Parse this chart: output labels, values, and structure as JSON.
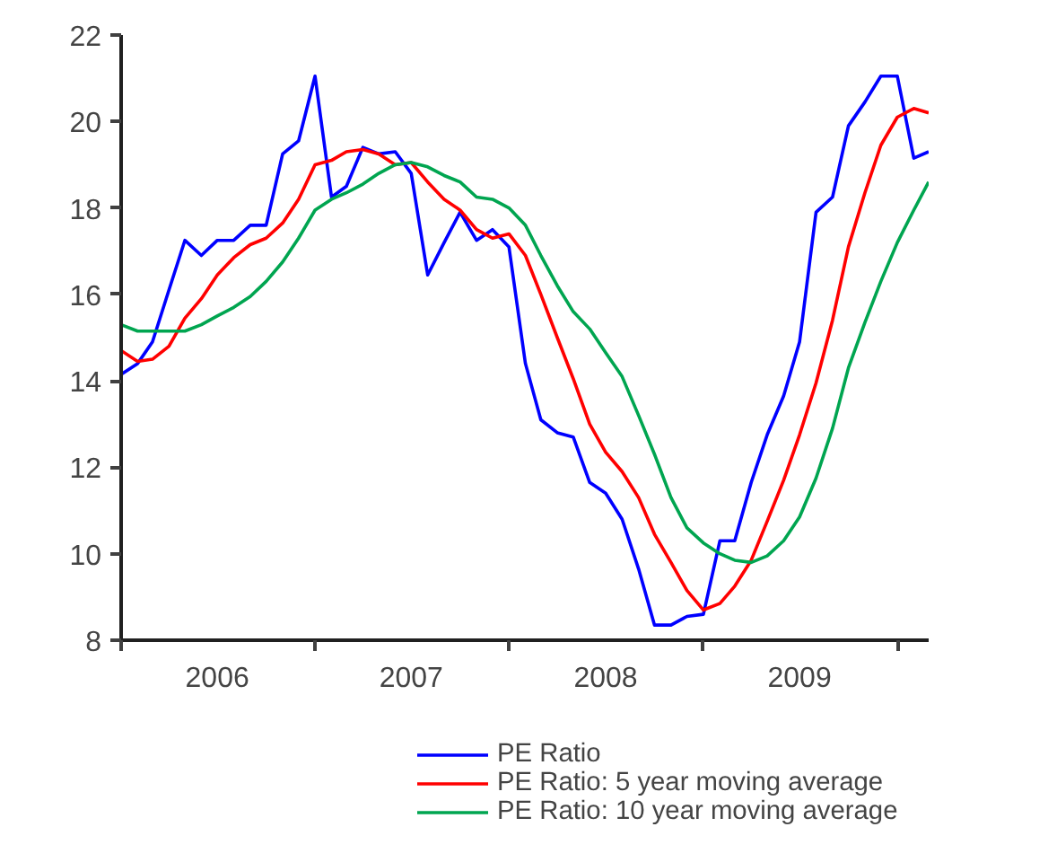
{
  "chart_data": {
    "type": "line",
    "x": [
      "2006-01",
      "2006-02",
      "2006-03",
      "2006-04",
      "2006-05",
      "2006-06",
      "2006-07",
      "2006-08",
      "2006-09",
      "2006-10",
      "2006-11",
      "2006-12",
      "2007-01",
      "2007-02",
      "2007-03",
      "2007-04",
      "2007-05",
      "2007-06",
      "2007-07",
      "2007-08",
      "2007-09",
      "2007-10",
      "2007-11",
      "2007-12",
      "2008-01",
      "2008-02",
      "2008-03",
      "2008-04",
      "2008-05",
      "2008-06",
      "2008-07",
      "2008-08",
      "2008-09",
      "2008-10",
      "2008-11",
      "2008-12",
      "2009-01",
      "2009-02",
      "2009-03",
      "2009-04",
      "2009-05",
      "2009-06",
      "2009-07",
      "2009-08",
      "2009-09",
      "2009-10",
      "2009-11",
      "2009-12",
      "2010-01",
      "2010-02",
      "2010-03"
    ],
    "series": [
      {
        "name": "PE Ratio",
        "color": "#0000ff",
        "values": [
          14.15,
          14.4,
          14.9,
          16.1,
          17.25,
          16.9,
          17.25,
          17.25,
          17.6,
          17.6,
          19.25,
          19.55,
          21.05,
          18.25,
          18.5,
          19.4,
          19.25,
          19.3,
          18.8,
          16.45,
          17.2,
          17.9,
          17.25,
          17.5,
          17.1,
          14.4,
          13.1,
          12.8,
          12.7,
          11.65,
          11.4,
          10.8,
          9.65,
          8.35,
          8.35,
          8.55,
          8.6,
          10.3,
          10.3,
          11.65,
          12.75,
          13.65,
          14.9,
          17.9,
          18.25,
          19.9,
          20.45,
          21.05,
          21.05,
          19.15,
          19.3
        ]
      },
      {
        "name": "PE Ratio: 5 year moving average",
        "color": "#ff0000",
        "values": [
          14.7,
          14.45,
          14.5,
          14.8,
          15.45,
          15.9,
          16.45,
          16.85,
          17.15,
          17.3,
          17.65,
          18.2,
          19.0,
          19.1,
          19.3,
          19.35,
          19.25,
          19.0,
          19.05,
          18.6,
          18.2,
          17.95,
          17.5,
          17.3,
          17.4,
          16.9,
          16.0,
          15.0,
          14.05,
          13.0,
          12.35,
          11.9,
          11.3,
          10.45,
          9.8,
          9.15,
          8.7,
          8.85,
          9.25,
          9.85,
          10.75,
          11.7,
          12.75,
          13.95,
          15.4,
          17.1,
          18.35,
          19.45,
          20.1,
          20.3,
          20.2
        ]
      },
      {
        "name": "PE Ratio: 10 year moving average",
        "color": "#00a550",
        "values": [
          15.3,
          15.15,
          15.15,
          15.15,
          15.15,
          15.3,
          15.5,
          15.7,
          15.95,
          16.3,
          16.75,
          17.3,
          17.95,
          18.2,
          18.35,
          18.55,
          18.8,
          19.0,
          19.05,
          18.95,
          18.75,
          18.6,
          18.25,
          18.2,
          18.0,
          17.6,
          16.9,
          16.2,
          15.6,
          15.2,
          14.65,
          14.1,
          13.2,
          12.3,
          11.3,
          10.6,
          10.25,
          10.0,
          9.85,
          9.8,
          9.95,
          10.3,
          10.85,
          11.75,
          12.9,
          14.3,
          15.35,
          16.3,
          17.2,
          17.95,
          18.6
        ]
      }
    ],
    "xlim": [
      "2006-01",
      "2010-03"
    ],
    "xticks": [
      {
        "value": "2006-01",
        "label": null
      },
      {
        "value": "2006-07",
        "label": "2006"
      },
      {
        "value": "2007-01",
        "label": null
      },
      {
        "value": "2007-07",
        "label": "2007"
      },
      {
        "value": "2008-01",
        "label": null
      },
      {
        "value": "2008-07",
        "label": "2008"
      },
      {
        "value": "2009-01",
        "label": null
      },
      {
        "value": "2009-07",
        "label": "2009"
      },
      {
        "value": "2010-01",
        "label": null
      }
    ],
    "ylim": [
      8,
      22
    ],
    "yticks": [
      8,
      10,
      12,
      14,
      16,
      18,
      20,
      22
    ],
    "grid": false,
    "legend": "bottom"
  }
}
